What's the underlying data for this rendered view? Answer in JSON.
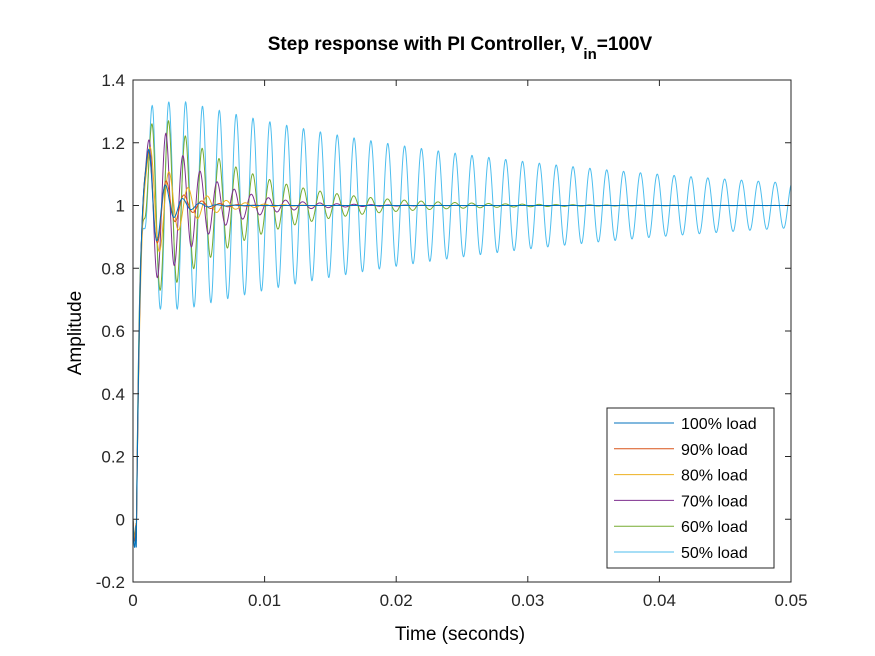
{
  "chart_data": {
    "type": "line",
    "title": "Step response with PI Controller, V",
    "title_subscript": "in",
    "title_suffix": "=100V",
    "xlabel": "Time (seconds)",
    "ylabel": "Amplitude",
    "xlim": [
      0,
      0.05
    ],
    "ylim": [
      -0.2,
      1.4
    ],
    "xticks": [
      0,
      0.01,
      0.02,
      0.03,
      0.04,
      0.05
    ],
    "xtick_labels": [
      "0",
      "0.01",
      "0.02",
      "0.03",
      "0.04",
      "0.05"
    ],
    "yticks": [
      -0.2,
      0,
      0.2,
      0.4,
      0.6,
      0.8,
      1,
      1.2,
      1.4
    ],
    "ytick_labels": [
      "-0.2",
      "0",
      "0.2",
      "0.4",
      "0.6",
      "0.8",
      "1",
      "1.2",
      "1.4"
    ],
    "grid": false,
    "legend_position": "bottom-right",
    "series": [
      {
        "name": "100% load",
        "color": "#0072BD",
        "first_peak": 1.19,
        "peak_time": 0.0012,
        "period": 0.0013,
        "undershoot": -0.09,
        "decay": 0.0012
      },
      {
        "name": "90% load",
        "color": "#D95319",
        "first_peak": 1.18,
        "peak_time": 0.0012,
        "period": 0.00135,
        "undershoot": -0.07,
        "decay": 0.0016
      },
      {
        "name": "80% load",
        "color": "#EDB120",
        "first_peak": 1.2,
        "peak_time": 0.0013,
        "period": 0.00145,
        "undershoot": -0.06,
        "decay": 0.0023
      },
      {
        "name": "70% load",
        "color": "#7E2F8E",
        "first_peak": 1.23,
        "peak_time": 0.0025,
        "period": 0.0013,
        "undershoot": -0.06,
        "decay": 0.0035
      },
      {
        "name": "60% load",
        "color": "#77AC30",
        "first_peak": 1.27,
        "peak_time": 0.0027,
        "period": 0.00128,
        "undershoot": -0.05,
        "decay": 0.0065
      },
      {
        "name": "50% load",
        "color": "#4DBEEE",
        "first_peak": 1.33,
        "peak_time": 0.004,
        "period": 0.00128,
        "undershoot": -0.05,
        "decay": 0.03
      }
    ]
  }
}
